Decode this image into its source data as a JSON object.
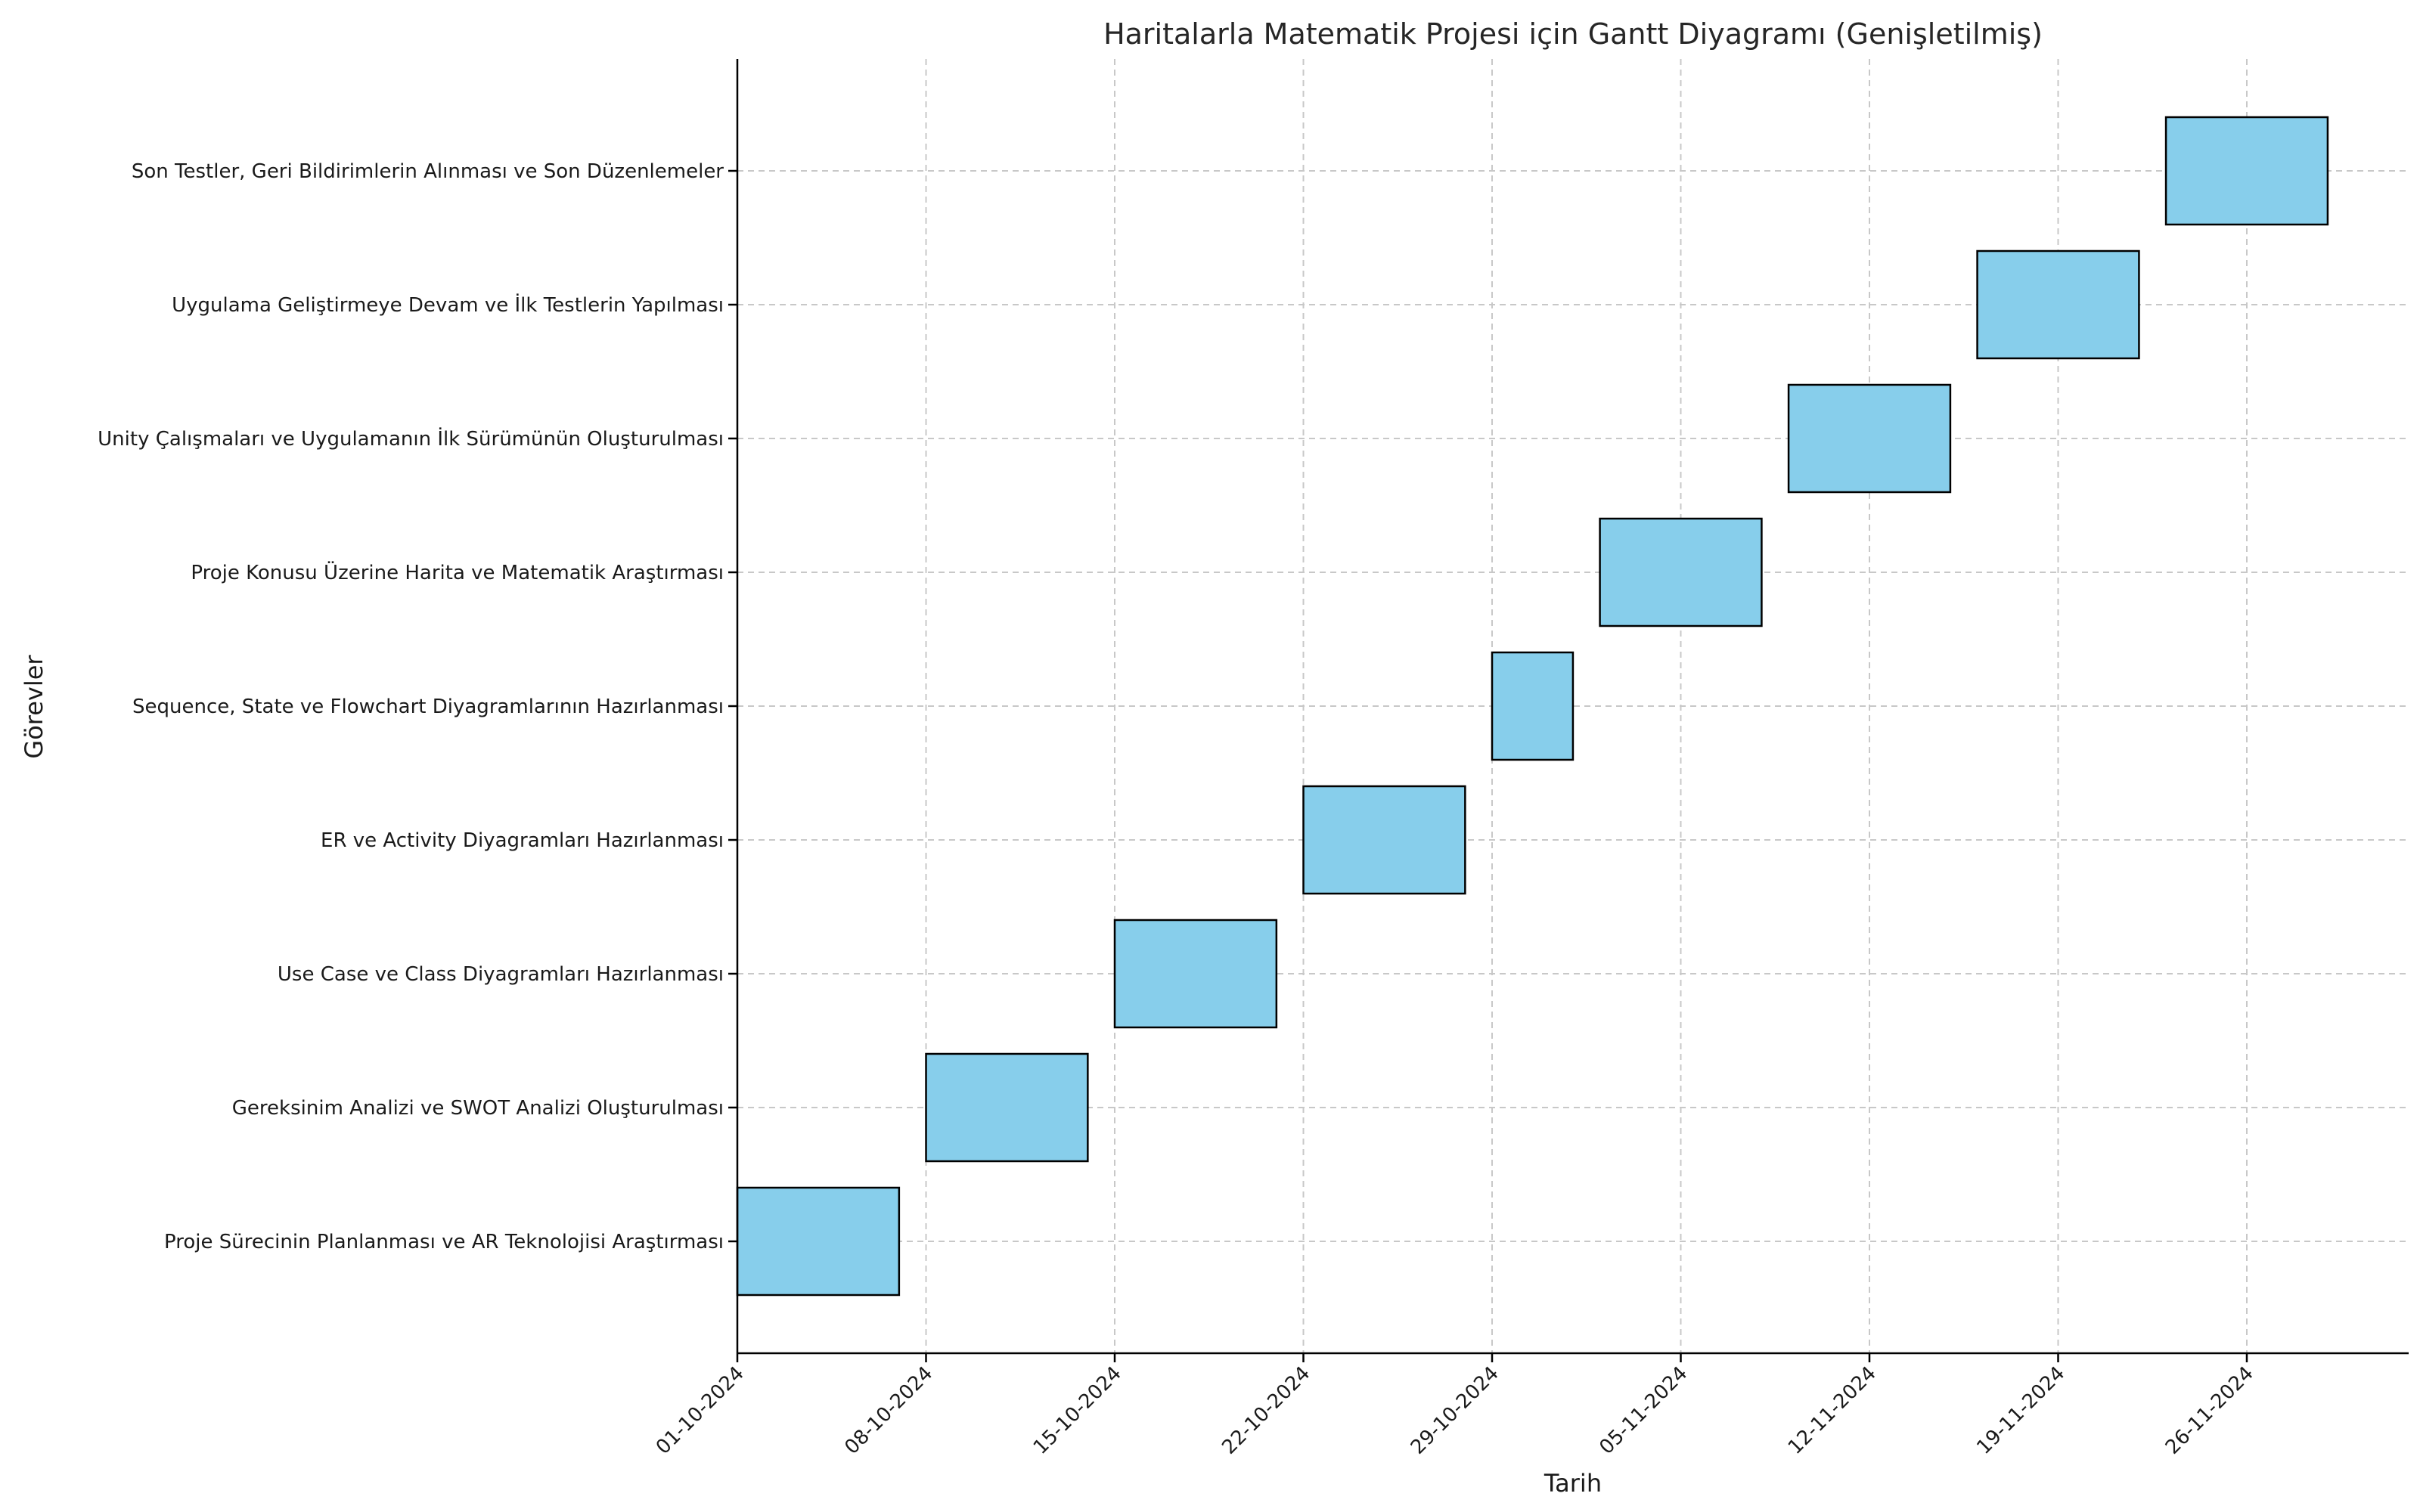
{
  "chart_data": {
    "type": "gantt",
    "title": "Haritalarla Matematik Projesi için Gantt Diyagramı (Genişletilmiş)",
    "xlabel": "Tarih",
    "ylabel": "Görevler",
    "bar_color": "#87CEEB",
    "bar_edge_color": "#000000",
    "grid": true,
    "x_range": [
      "2024-10-01",
      "2024-12-04"
    ],
    "x_ticks": [
      {
        "date": "2024-10-01",
        "label": "01-10-2024"
      },
      {
        "date": "2024-10-08",
        "label": "08-10-2024"
      },
      {
        "date": "2024-10-15",
        "label": "15-10-2024"
      },
      {
        "date": "2024-10-22",
        "label": "22-10-2024"
      },
      {
        "date": "2024-10-29",
        "label": "29-10-2024"
      },
      {
        "date": "2024-11-05",
        "label": "05-11-2024"
      },
      {
        "date": "2024-11-12",
        "label": "12-11-2024"
      },
      {
        "date": "2024-11-19",
        "label": "19-11-2024"
      },
      {
        "date": "2024-11-26",
        "label": "26-11-2024"
      }
    ],
    "tasks": [
      {
        "name": "Proje Sürecinin Planlanması ve AR Teknolojisi Araştırması",
        "start": "2024-10-01",
        "end": "2024-10-07"
      },
      {
        "name": "Gereksinim Analizi ve SWOT Analizi Oluşturulması",
        "start": "2024-10-08",
        "end": "2024-10-14"
      },
      {
        "name": "Use Case ve Class Diyagramları Hazırlanması",
        "start": "2024-10-15",
        "end": "2024-10-21"
      },
      {
        "name": "ER ve Activity Diyagramları Hazırlanması",
        "start": "2024-10-22",
        "end": "2024-10-28"
      },
      {
        "name": "Sequence, State ve Flowchart Diyagramlarının Hazırlanması",
        "start": "2024-10-29",
        "end": "2024-11-01"
      },
      {
        "name": "Proje Konusu Üzerine Harita ve Matematik Araştırması",
        "start": "2024-11-02",
        "end": "2024-11-08"
      },
      {
        "name": "Unity Çalışmaları ve Uygulamanın İlk Sürümünün Oluşturulması",
        "start": "2024-11-09",
        "end": "2024-11-15"
      },
      {
        "name": "Uygulama Geliştirmeye Devam ve İlk Testlerin Yapılması",
        "start": "2024-11-16",
        "end": "2024-11-22"
      },
      {
        "name": "Son Testler, Geri Bildirimlerin Alınması ve Son Düzenlemeler",
        "start": "2024-11-23",
        "end": "2024-11-29"
      }
    ]
  }
}
